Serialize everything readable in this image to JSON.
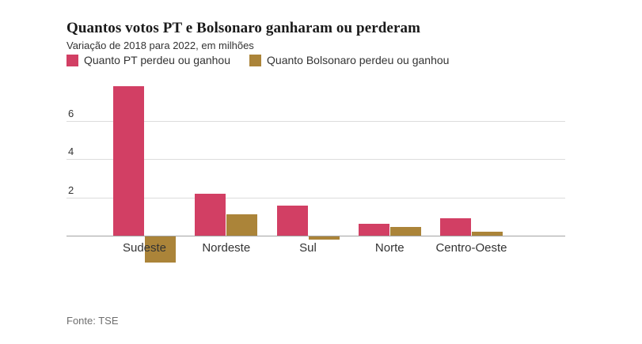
{
  "header": {
    "title": "Quantos votos PT e Bolsonaro ganharam ou perderam",
    "subtitle": "Variação de 2018 para 2022, em milhões"
  },
  "footer": {
    "source": "Fonte: TSE"
  },
  "colors": {
    "pt_series": "#d23f64",
    "bolsonaro_series": "#ab8439",
    "gridline": "#dcdcdc",
    "baseline": "#a3a3a3",
    "text_dark": "#1a1a1a",
    "text_body": "#333333",
    "text_muted": "#6e6e6e"
  },
  "chart_data": {
    "type": "bar",
    "title": "Quantos votos PT e Bolsonaro ganharam ou perderam",
    "subtitle": "Variação de 2018 para 2022, em milhões",
    "categories": [
      "Sudeste",
      "Nordeste",
      "Sul",
      "Norte",
      "Centro-Oeste"
    ],
    "series": [
      {
        "name": "Quanto PT perdeu ou ganhou",
        "color": "#d23f64",
        "values": [
          7.8,
          2.2,
          1.55,
          0.6,
          0.9
        ]
      },
      {
        "name": "Quanto Bolsonaro perdeu ou ganhou",
        "color": "#ab8439",
        "values": [
          -1.35,
          1.1,
          -0.15,
          0.45,
          0.2
        ]
      }
    ],
    "xlabel": "",
    "ylabel": "",
    "yticks": [
      2,
      4,
      6
    ],
    "ylim": [
      -1.6,
      8.2
    ],
    "grid": "horizontal",
    "legend_position": "top-left",
    "source": "Fonte: TSE",
    "units": "milhões de votos"
  }
}
